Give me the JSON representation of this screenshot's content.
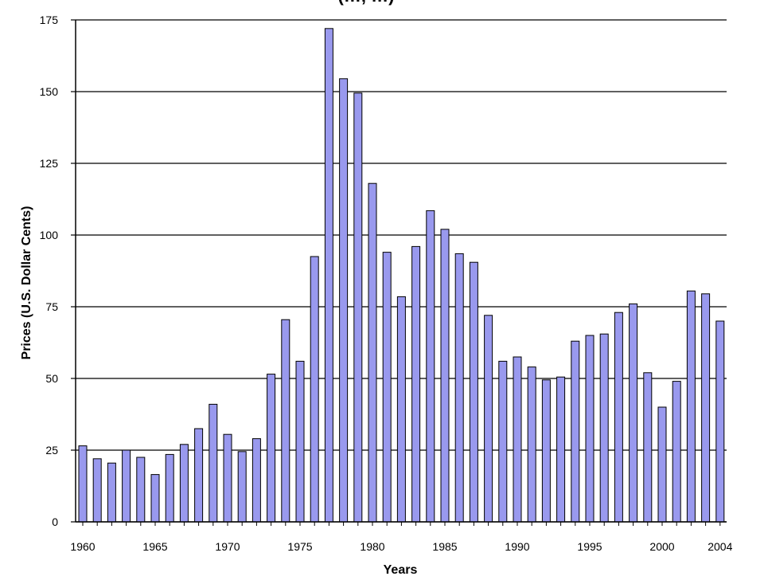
{
  "chart_data": {
    "type": "bar",
    "title": "(…, …)",
    "xlabel": "Years",
    "ylabel": "Prices (U.S. Dollar Cents)",
    "ylim": [
      0,
      175
    ],
    "yticks": [
      0,
      25,
      50,
      75,
      100,
      125,
      150,
      175
    ],
    "xtick_labels": [
      "1960",
      "1965",
      "1970",
      "1975",
      "1980",
      "1985",
      "1990",
      "1995",
      "2000",
      "2004"
    ],
    "grid": "horizontal",
    "bar_color": "#9999ee",
    "categories": [
      1960,
      1961,
      1962,
      1963,
      1964,
      1965,
      1966,
      1967,
      1968,
      1969,
      1970,
      1971,
      1972,
      1973,
      1974,
      1975,
      1976,
      1977,
      1978,
      1979,
      1980,
      1981,
      1982,
      1983,
      1984,
      1985,
      1986,
      1987,
      1988,
      1989,
      1990,
      1991,
      1992,
      1993,
      1994,
      1995,
      1996,
      1997,
      1998,
      1999,
      2000,
      2001,
      2002,
      2003,
      2004
    ],
    "values": [
      26.5,
      22,
      20.5,
      25,
      22.5,
      16.5,
      23.5,
      27,
      32.5,
      41,
      30.5,
      24.5,
      29,
      51.5,
      70.5,
      56,
      92.5,
      172,
      154.5,
      149.5,
      118,
      94,
      78.5,
      96,
      108.5,
      102,
      93.5,
      90.5,
      72,
      56,
      57.5,
      54,
      49.5,
      50.5,
      63,
      65,
      65.5,
      73,
      76,
      52,
      40,
      49,
      80.5,
      79.5,
      70
    ]
  }
}
